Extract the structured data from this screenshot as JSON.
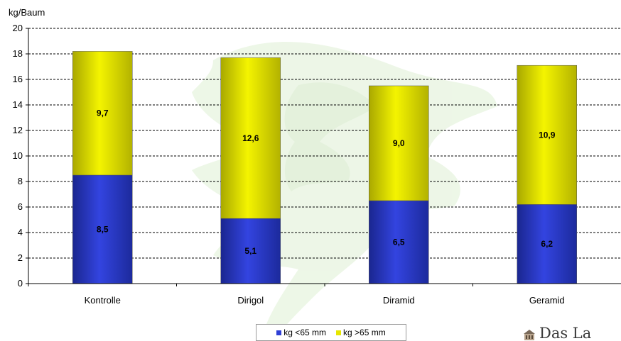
{
  "chart_data": {
    "type": "bar",
    "stacked": true,
    "title": "",
    "ylabel": "kg/Baum",
    "xlabel": "",
    "ylim": [
      0,
      20
    ],
    "yticks": [
      0,
      2,
      4,
      6,
      8,
      10,
      12,
      14,
      16,
      18,
      20
    ],
    "grid": true,
    "legend_position": "bottom",
    "categories": [
      "Kontrolle",
      "Dirigol",
      "Diramid",
      "Geramid"
    ],
    "series": [
      {
        "name": "kg <65 mm",
        "values": [
          8.5,
          5.1,
          6.5,
          6.2
        ],
        "labels": [
          "8,5",
          "5,1",
          "6,5",
          "6,2"
        ],
        "color": "#2f3fd6"
      },
      {
        "name": "kg >65 mm",
        "values": [
          9.7,
          12.6,
          9.0,
          10.9
        ],
        "labels": [
          "9,7",
          "12,6",
          "9,0",
          "10,9"
        ],
        "color": "#e6e600"
      }
    ]
  },
  "watermark": {
    "text": "Das La"
  }
}
